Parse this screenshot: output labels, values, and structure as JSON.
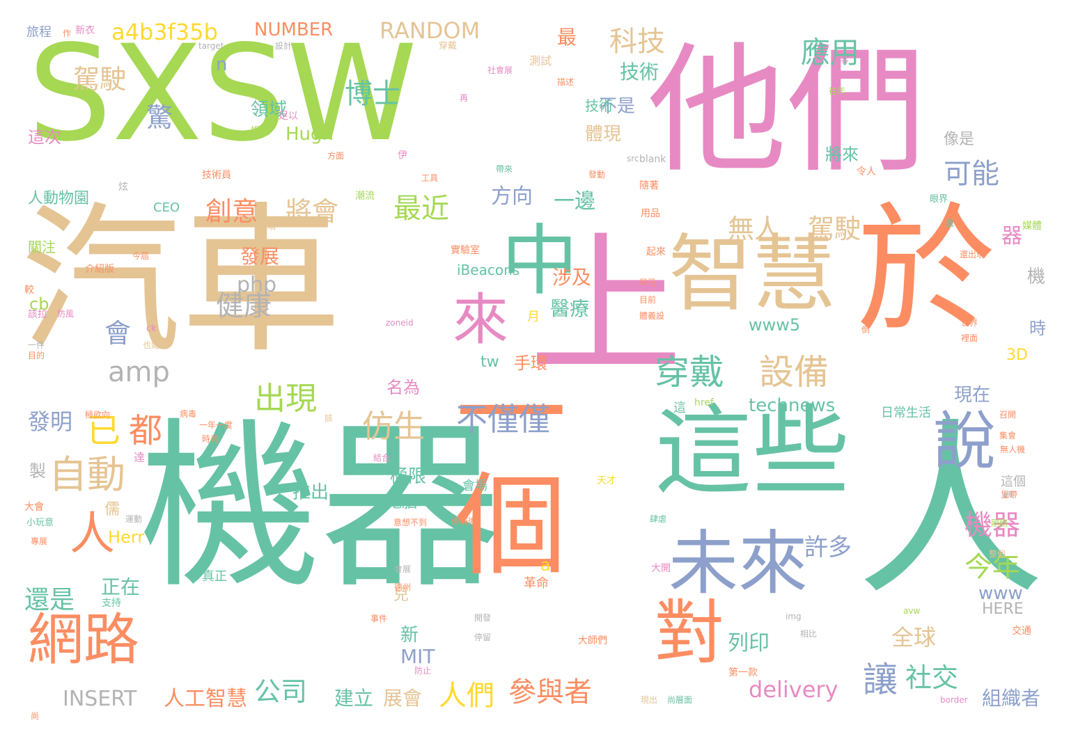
{
  "palette": {
    "green": "#a6d854",
    "pink": "#e78ac3",
    "teal": "#66c2a5",
    "tan": "#e5c494",
    "orange": "#fc8d62",
    "blue": "#8da0cb",
    "yellow": "#ffd92f",
    "gray": "#b3b3b3"
  },
  "words": [
    "SXSW",
    "機器",
    "汽車",
    "上",
    "他們",
    "人",
    "於",
    "這些",
    "智慧",
    "中",
    "來",
    "一個",
    "未來",
    "說",
    "對",
    "網路",
    "自動",
    "人",
    "已",
    "都",
    "穿戴",
    "設備",
    "無人",
    "駕駛",
    "不僅僅",
    "仿生",
    "出現",
    "健康",
    "會",
    "amp",
    "php",
    "cb",
    "將會",
    "創意",
    "最近",
    "可能",
    "應用",
    "科技",
    "博士",
    "駕駛",
    "驚",
    "技術",
    "領域",
    "Hugh",
    "RANDOM",
    "NUMBER",
    "a4b3f35b",
    "n",
    "最",
    "不是",
    "體現",
    "將來",
    "像是",
    "這次",
    "人動物園",
    "旅程",
    "作",
    "新衣",
    "target",
    "設計",
    "穿戴",
    "社會展",
    "測試",
    "描述",
    "極客",
    "往年",
    "提出",
    "足以",
    "再",
    "方面",
    "技術員",
    "伊",
    "工具",
    "帶來",
    "發動",
    "blank",
    "src",
    "令人",
    "隨著",
    "用品",
    "方向",
    "一邊",
    "CEO",
    "潮流",
    "炫",
    "眼界",
    "還項",
    "關注",
    "今屆",
    "起來",
    "實驗室",
    "iBeacons",
    "早已",
    "目前",
    "體義設",
    "器",
    "媒體",
    "還出現",
    "震",
    "機",
    "涉及",
    "醫療",
    "發展",
    "月",
    "介紹版",
    "較",
    "該拉",
    "防風",
    "ck",
    "也始",
    "zoneid",
    "一件",
    "目的",
    "www5",
    "時",
    "世界",
    "裡面",
    "3D",
    "tw",
    "手環",
    "名為",
    "technews",
    "現在",
    "發明",
    "日常生活",
    "全球",
    "社交",
    "讓",
    "機器",
    "許多",
    "今年",
    "列印",
    "delivery",
    "www",
    "HERE",
    "INSERT",
    "人工智慧",
    "公司",
    "人們",
    "參與者",
    "展會",
    "建立",
    "組織者",
    "還是",
    "正在",
    "MIT",
    "新",
    "兒",
    "a",
    "Herr",
    "製",
    "儒",
    "極限",
    "電腦",
    "會場",
    "天才",
    "這個",
    "大會",
    "小玩意",
    "運動",
    "推出",
    "意想不到",
    "修補術",
    "肆虐",
    "專展",
    "會展",
    "德州",
    "革命",
    "開發",
    "停留",
    "大師們",
    "相比",
    "交通",
    "第一款",
    "事件",
    "現出",
    "尚層面",
    "border",
    "img",
    "avw",
    "尚",
    "支持",
    "真正",
    "防止",
    "剛剛",
    "整個",
    "大開",
    "里帶",
    "alt",
    "集會",
    "召開",
    "無人機",
    "達",
    "時尚",
    "一年一度",
    "結合",
    "該",
    "病毒",
    "這",
    "href",
    "極欲向",
    "倒",
    "技術"
  ]
}
